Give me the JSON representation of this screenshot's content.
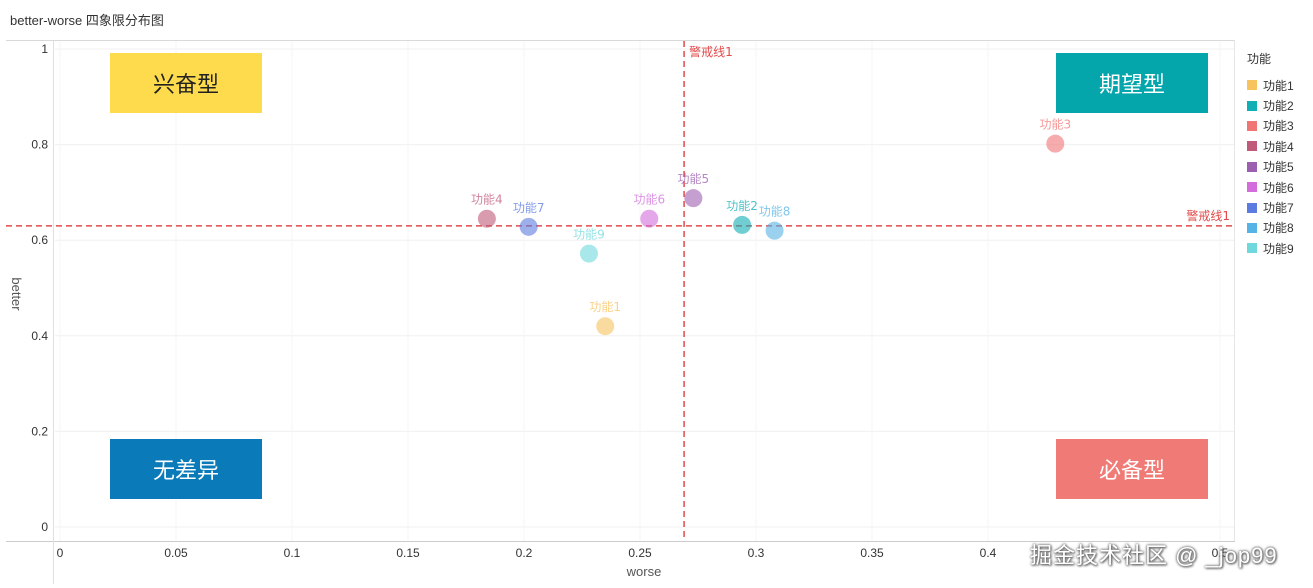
{
  "page": {
    "title": "better-worse 四象限分布图"
  },
  "legend": {
    "title": "功能",
    "items": [
      {
        "label": "功能1",
        "color": "#f7c35f"
      },
      {
        "label": "功能2",
        "color": "#10aeb5"
      },
      {
        "label": "功能3",
        "color": "#f07575"
      },
      {
        "label": "功能4",
        "color": "#c05a7a"
      },
      {
        "label": "功能5",
        "color": "#9c5fb0"
      },
      {
        "label": "功能6",
        "color": "#d26ddb"
      },
      {
        "label": "功能7",
        "color": "#5b7be0"
      },
      {
        "label": "功能8",
        "color": "#56b3e5"
      },
      {
        "label": "功能9",
        "color": "#6fd8dc"
      }
    ]
  },
  "watermark": "掘金技术社区 @ _jop99",
  "chart_data": {
    "type": "scatter",
    "xlabel": "worse",
    "ylabel": "better",
    "xlim": [
      0,
      0.5
    ],
    "ylim": [
      0,
      1
    ],
    "x_ticks": [
      "0",
      "0.05",
      "0.1",
      "0.15",
      "0.2",
      "0.25",
      "0.3",
      "0.35",
      "0.4",
      "0.5"
    ],
    "x_tick_values": [
      0,
      0.05,
      0.1,
      0.15,
      0.2,
      0.25,
      0.3,
      0.35,
      0.4,
      0.5
    ],
    "y_ticks": [
      "0",
      "0.2",
      "0.4",
      "0.6",
      "0.8",
      "1"
    ],
    "y_tick_values": [
      0,
      0.2,
      0.4,
      0.6,
      0.8,
      1
    ],
    "grid": true,
    "points": [
      {
        "label": "功能1",
        "x": 0.235,
        "y": 0.42,
        "color": "#f7c35f"
      },
      {
        "label": "功能2",
        "x": 0.294,
        "y": 0.632,
        "color": "#10aeb5"
      },
      {
        "label": "功能3",
        "x": 0.429,
        "y": 0.802,
        "color": "#f07575"
      },
      {
        "label": "功能4",
        "x": 0.184,
        "y": 0.645,
        "color": "#c05a7a"
      },
      {
        "label": "功能5",
        "x": 0.273,
        "y": 0.688,
        "color": "#9c5fb0"
      },
      {
        "label": "功能6",
        "x": 0.254,
        "y": 0.645,
        "color": "#d26ddb"
      },
      {
        "label": "功能7",
        "x": 0.202,
        "y": 0.628,
        "color": "#5b7be0"
      },
      {
        "label": "功能8",
        "x": 0.308,
        "y": 0.62,
        "color": "#56b3e5"
      },
      {
        "label": "功能9",
        "x": 0.228,
        "y": 0.572,
        "color": "#6fd8dc"
      }
    ],
    "reference_lines": {
      "vertical": {
        "x": 0.269,
        "label": "警戒线1",
        "color": "#e24a4a"
      },
      "horizontal": {
        "y": 0.63,
        "label": "警戒线1",
        "color": "#e24a4a"
      }
    },
    "quadrants": [
      {
        "label": "兴奋型",
        "position": "top-left",
        "color": "#fddb4c",
        "text_color": "#222222"
      },
      {
        "label": "期望型",
        "position": "top-right",
        "color": "#05a5ac",
        "text_color": "#ffffff"
      },
      {
        "label": "无差异",
        "position": "bottom-left",
        "color": "#0a7bb8",
        "text_color": "#ffffff"
      },
      {
        "label": "必备型",
        "position": "bottom-right",
        "color": "#f07a76",
        "text_color": "#ffffff"
      }
    ]
  }
}
